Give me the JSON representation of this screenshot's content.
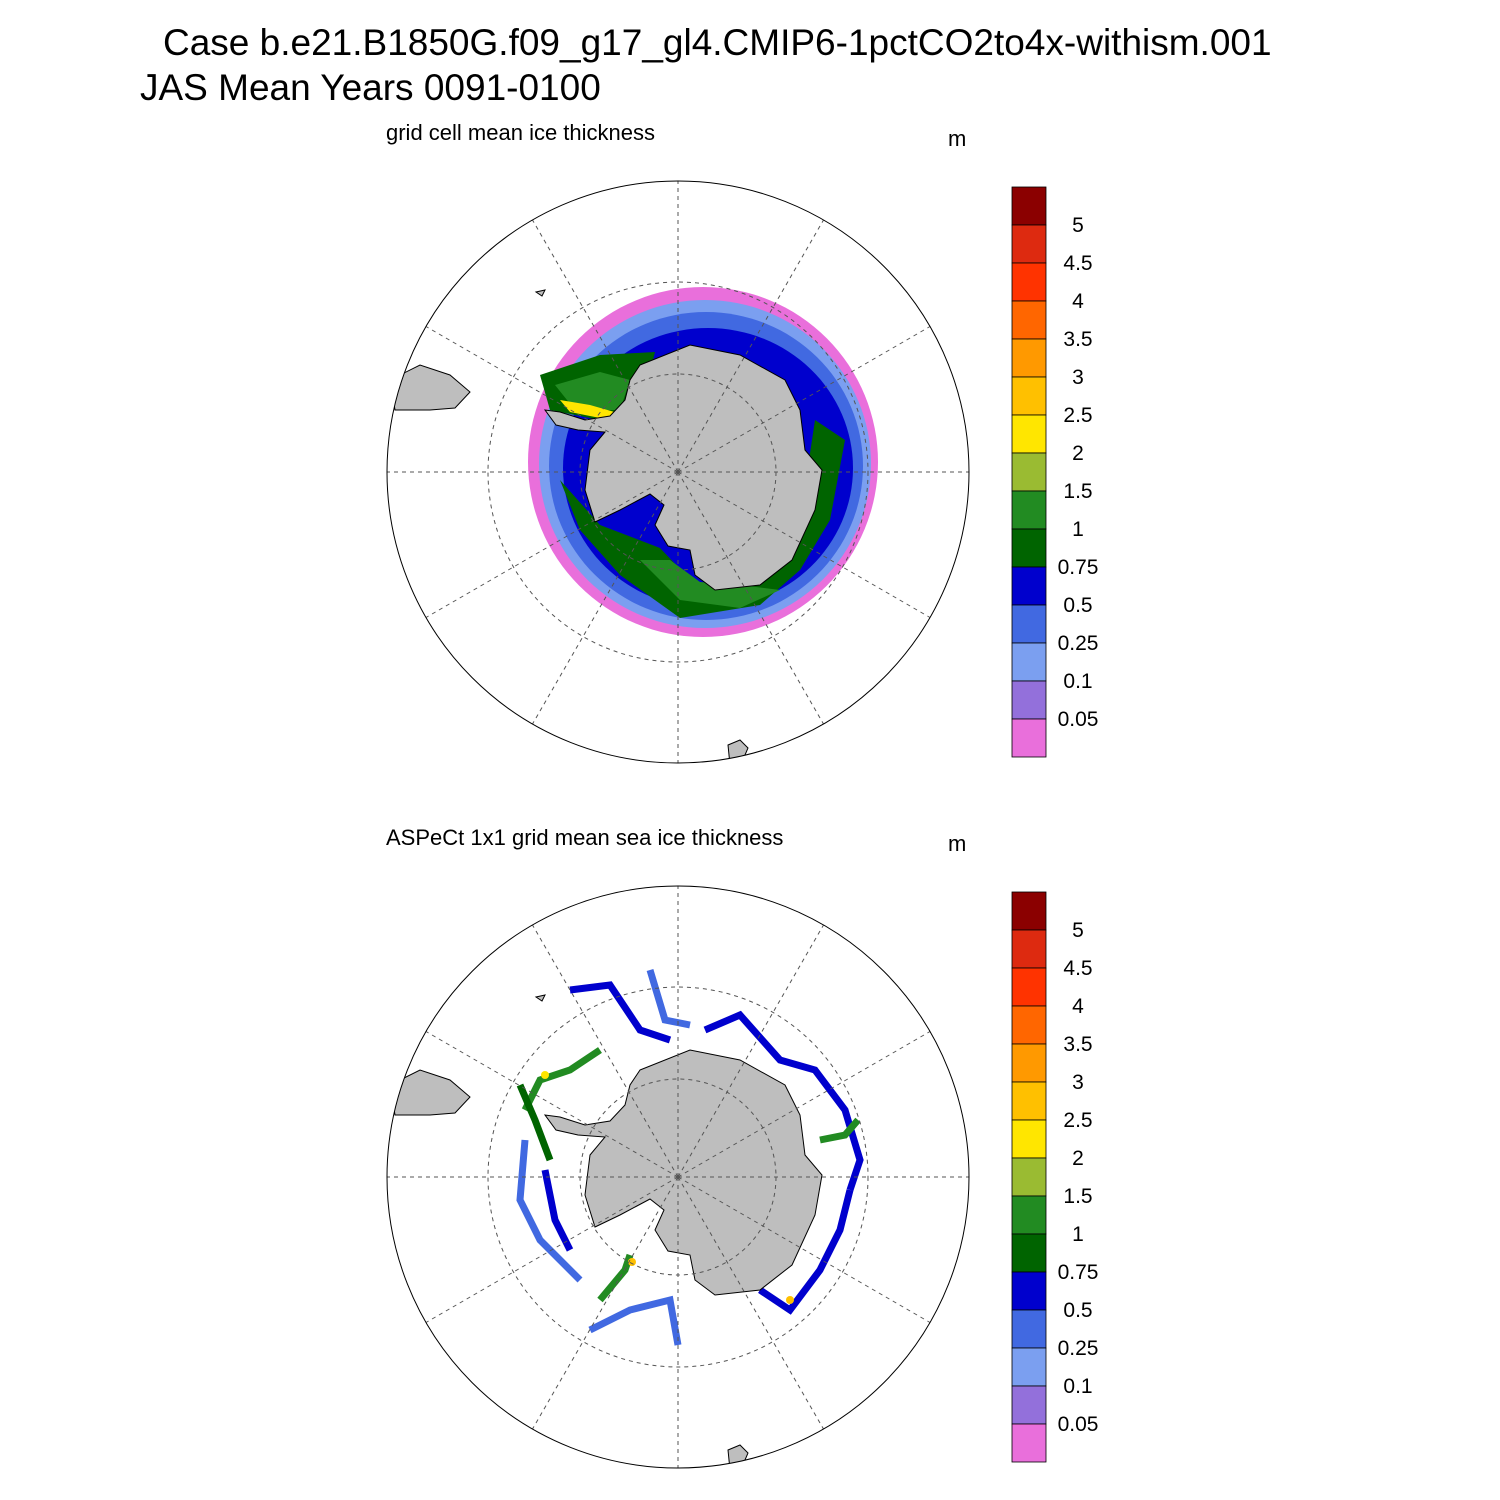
{
  "header": {
    "title_line1": "Case b.e21.B1850G.f09_g17_gl4.CMIP6-1pctCO2to4x-withism.001",
    "title_line2": "JAS Mean   Years 0091-0100"
  },
  "panels": [
    {
      "title": "grid cell mean ice thickness",
      "units": "m"
    },
    {
      "title": "ASPeCt 1x1 grid mean sea ice thickness",
      "units": "m"
    }
  ],
  "colorbar": {
    "labels": [
      5,
      4.5,
      4,
      3.5,
      3,
      2.5,
      2,
      1.5,
      1,
      0.75,
      0.5,
      0.25,
      0.1,
      0.05
    ],
    "colors": [
      "#8b0000",
      "#dd2a10",
      "#ff3300",
      "#ff6600",
      "#ff9900",
      "#ffc000",
      "#ffe600",
      "#9abb32",
      "#228b22",
      "#006400",
      "#0000cd",
      "#4169e1",
      "#7b9ff0",
      "#9370db",
      "#e96fdb"
    ]
  }
}
